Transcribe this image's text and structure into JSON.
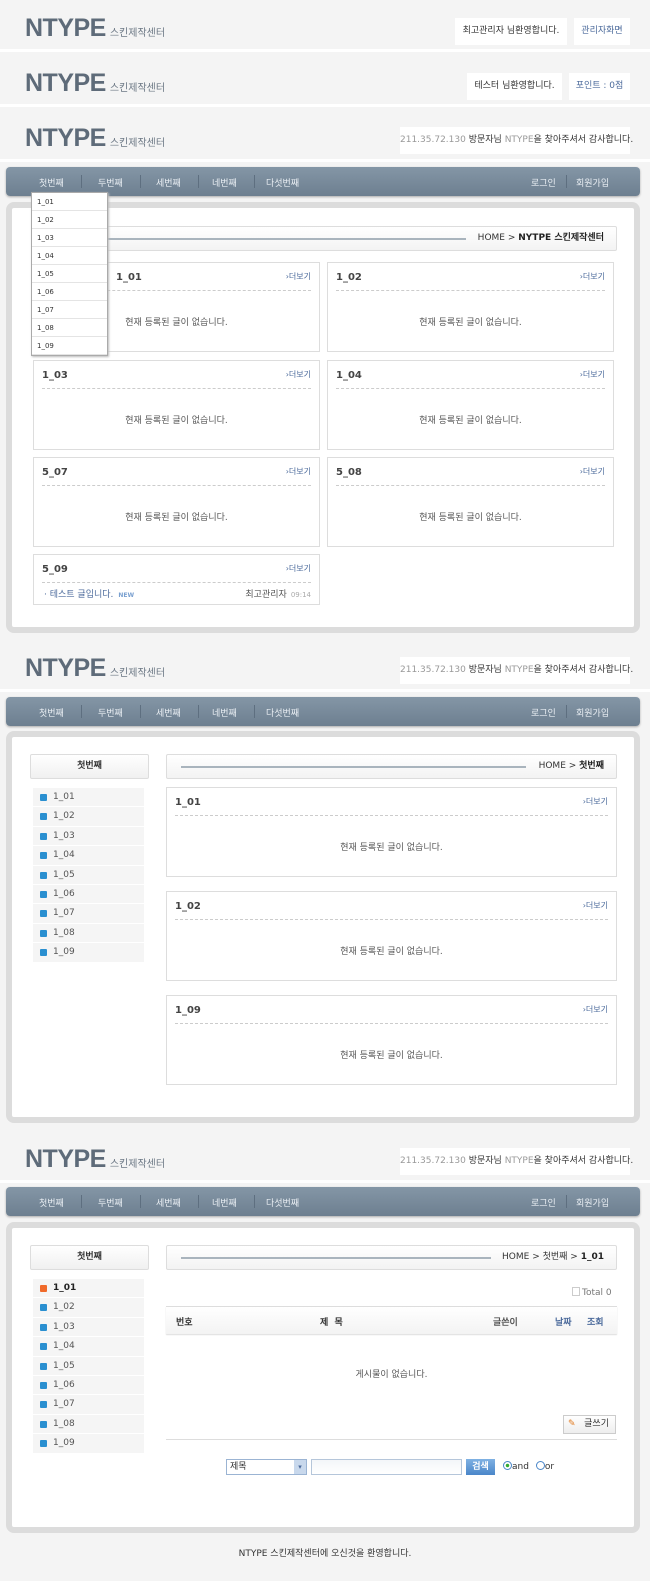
{
  "logo": {
    "name": "NTYPE",
    "sub": "스킨제작센터"
  },
  "header1": {
    "welcome": "최고관리자 님환영합니다.",
    "admin": "관리자화면"
  },
  "header2": {
    "welcome": "테스터 님환영합니다.",
    "points": "포인트 : 0점"
  },
  "header3": {
    "ip": "211.35.72.130",
    "visitor": " 방문자님 ",
    "brand": "NTYPE",
    "thanks": "을 찾아주셔서 감사합니다."
  },
  "nav": {
    "items": [
      "첫번째",
      "두번째",
      "세번째",
      "네번째",
      "다섯번째"
    ],
    "login": "로그인",
    "join": "회원가입"
  },
  "dropdown": [
    "1_01",
    "1_02",
    "1_03",
    "1_04",
    "1_05",
    "1_06",
    "1_07",
    "1_08",
    "1_09"
  ],
  "page1": {
    "crumb_home": "HOME > ",
    "crumb_cur": "NYTPE 스킨제작센터",
    "more": "›더보기",
    "empty": "현재 등록된 글이 없습니다.",
    "boxes": [
      "1_01",
      "1_02",
      "1_03",
      "1_04",
      "5_07",
      "5_08",
      "5_09"
    ],
    "post": {
      "title": "· 테스트 글입니다.",
      "badge": "NEW",
      "author": "최고관리자",
      "time": "09:14"
    }
  },
  "page2": {
    "side_title": "첫번째",
    "side_items": [
      "1_01",
      "1_02",
      "1_03",
      "1_04",
      "1_05",
      "1_06",
      "1_07",
      "1_08",
      "1_09"
    ],
    "crumb_home": "HOME > ",
    "crumb_cur": "첫번째",
    "boxes": [
      "1_01",
      "1_02",
      "1_09"
    ]
  },
  "page3": {
    "side_title": "첫번째",
    "crumb_home": "HOME > 첫번째 > ",
    "crumb_cur": "1_01",
    "total": "Total 0",
    "columns": [
      "번호",
      "제  목",
      "글쓴이",
      "날짜",
      "조회"
    ],
    "empty": "게시물이 없습니다.",
    "write": "글쓰기",
    "search_select": "제목",
    "search_value": "",
    "search_btn": "검색",
    "radio_and": "and",
    "radio_or": "or",
    "radio_selected": "and"
  },
  "footer": "NTYPE 스킨제작센터에 오신것을 환영합니다.",
  "colors": {
    "nav": "#75869a",
    "accent": "#4b6a9b",
    "active_bullet": "#f06a2a",
    "bullet": "#2a8fd0"
  }
}
